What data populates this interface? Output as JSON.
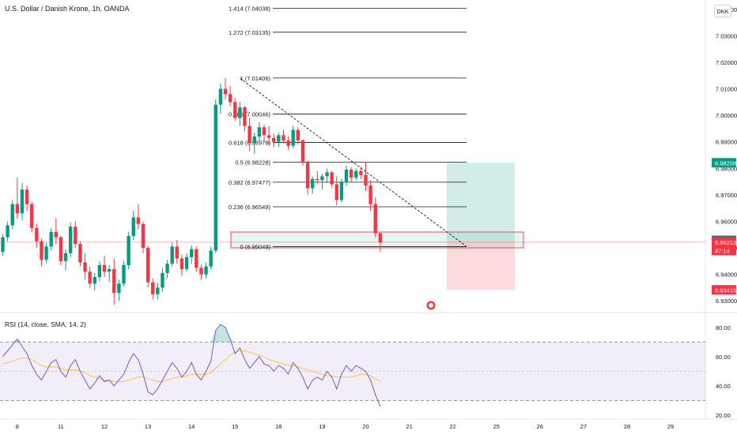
{
  "header": {
    "title": "U.S. Dollar / Danish Krone, 1h, OANDA",
    "currency_button": "DKK"
  },
  "chart_data": {
    "type": "candlestick",
    "symbol": "U.S. Dollar / Danish Krone",
    "interval": "1h",
    "source": "OANDA",
    "price_axis": {
      "range": [
        6.9265,
        7.0435
      ],
      "ticks": [
        6.93,
        6.94,
        6.95,
        6.96,
        6.97,
        6.98,
        6.99,
        7.0,
        7.01,
        7.02,
        7.03,
        7.04
      ],
      "tick_labels": [
        "6.93000",
        "6.94000",
        "6.95000",
        "6.96000",
        "6.97000",
        "6.98000",
        "6.99000",
        "7.00000",
        "7.01000",
        "7.02000",
        "7.03000",
        "7.04000"
      ],
      "badges": [
        {
          "label": "6.98208",
          "value": 6.98208,
          "color": "#089981"
        },
        {
          "label": "6.95284",
          "value": 6.95284,
          "color": "#5d606b"
        },
        {
          "label": "6.95213",
          "value": 6.95213,
          "color": "#f23645"
        },
        {
          "label": "47:14",
          "value": 6.949,
          "color": "#f23645"
        },
        {
          "label": "6.93415",
          "value": 6.93415,
          "color": "#f23645"
        }
      ],
      "last_price": 6.95213
    },
    "time_axis": {
      "labels": [
        "8",
        "11",
        "12",
        "13",
        "14",
        "15",
        "18",
        "19",
        "20",
        "21",
        "22",
        "25",
        "26",
        "27",
        "28",
        "29"
      ],
      "index": [
        3,
        12,
        21,
        30,
        39,
        48,
        57,
        66,
        75,
        84,
        93,
        102,
        111,
        120,
        129,
        138
      ]
    },
    "candles": [
      [
        6.9485,
        6.9552,
        6.947,
        6.954
      ],
      [
        6.954,
        6.96,
        6.9525,
        6.9585
      ],
      [
        6.9585,
        6.968,
        6.957,
        6.9665
      ],
      [
        6.9665,
        6.9765,
        6.961,
        6.963
      ],
      [
        6.963,
        6.9745,
        6.9605,
        6.972
      ],
      [
        6.972,
        6.9735,
        6.964,
        6.9665
      ],
      [
        6.9665,
        6.9675,
        6.956,
        6.9575
      ],
      [
        6.9575,
        6.959,
        6.95,
        6.9525
      ],
      [
        6.9525,
        6.9535,
        6.943,
        6.9455
      ],
      [
        6.9455,
        6.952,
        6.9445,
        6.9505
      ],
      [
        6.9505,
        6.9575,
        6.949,
        6.956
      ],
      [
        6.956,
        6.9612,
        6.9515,
        6.954
      ],
      [
        6.954,
        6.9545,
        6.9435,
        6.945
      ],
      [
        6.945,
        6.9495,
        6.9415,
        6.948
      ],
      [
        6.948,
        6.9595,
        6.9465,
        6.958
      ],
      [
        6.958,
        6.96,
        6.95,
        6.9515
      ],
      [
        6.9515,
        6.9525,
        6.943,
        6.9445
      ],
      [
        6.9445,
        6.9478,
        6.938,
        6.941
      ],
      [
        6.941,
        6.943,
        6.9348,
        6.9365
      ],
      [
        6.9365,
        6.9405,
        6.934,
        6.939
      ],
      [
        6.939,
        6.945,
        6.9375,
        6.9435
      ],
      [
        6.9435,
        6.947,
        6.939,
        6.941
      ],
      [
        6.941,
        6.9435,
        6.9372,
        6.942
      ],
      [
        6.942,
        6.946,
        6.9285,
        6.933
      ],
      [
        6.933,
        6.938,
        6.93,
        6.9365
      ],
      [
        6.9365,
        6.945,
        6.9355,
        6.9435
      ],
      [
        6.9435,
        6.956,
        6.942,
        6.9545
      ],
      [
        6.9545,
        6.964,
        6.953,
        6.9615
      ],
      [
        6.9615,
        6.9665,
        6.957,
        6.959
      ],
      [
        6.959,
        6.96,
        6.948,
        6.95
      ],
      [
        6.95,
        6.9508,
        6.935,
        6.937
      ],
      [
        6.937,
        6.9385,
        6.9305,
        6.9325
      ],
      [
        6.9325,
        6.9368,
        6.9305,
        6.935
      ],
      [
        6.935,
        6.9425,
        6.9335,
        6.9405
      ],
      [
        6.9405,
        6.9455,
        6.9385,
        6.944
      ],
      [
        6.944,
        6.952,
        6.943,
        6.9505
      ],
      [
        6.9505,
        6.953,
        6.944,
        6.946
      ],
      [
        6.946,
        6.9475,
        6.9395,
        6.942
      ],
      [
        6.942,
        6.948,
        6.941,
        6.9465
      ],
      [
        6.9465,
        6.951,
        6.944,
        6.9495
      ],
      [
        6.9495,
        6.9505,
        6.941,
        6.9425
      ],
      [
        6.9425,
        6.9438,
        6.938,
        6.94
      ],
      [
        6.94,
        6.9445,
        6.9385,
        6.943
      ],
      [
        6.943,
        6.9505,
        6.942,
        6.949
      ],
      [
        6.949,
        7.006,
        6.948,
        7.004
      ],
      [
        7.004,
        7.012,
        7.0005,
        7.01
      ],
      [
        7.01,
        7.014,
        7.006,
        7.008
      ],
      [
        7.008,
        7.011,
        7.0035,
        7.005
      ],
      [
        7.005,
        7.0065,
        6.998,
        6.999
      ],
      [
        6.999,
        7.005,
        6.996,
        7.003
      ],
      [
        7.003,
        7.0035,
        6.994,
        6.996
      ],
      [
        6.996,
        6.999,
        6.9865,
        6.9895
      ],
      [
        6.9895,
        6.9935,
        6.9855,
        6.992
      ],
      [
        6.992,
        6.9975,
        6.99,
        6.9955
      ],
      [
        6.9955,
        6.9965,
        6.99,
        6.9925
      ],
      [
        6.9925,
        6.996,
        6.989,
        6.9915
      ],
      [
        6.9915,
        6.993,
        6.988,
        6.99
      ],
      [
        6.99,
        6.9935,
        6.988,
        6.9925
      ],
      [
        6.9925,
        6.9945,
        6.9895,
        6.9905
      ],
      [
        6.9905,
        6.992,
        6.987,
        6.9885
      ],
      [
        6.9885,
        6.996,
        6.9875,
        6.9945
      ],
      [
        6.9945,
        6.9955,
        6.989,
        6.9905
      ],
      [
        6.9905,
        6.991,
        6.981,
        6.9825
      ],
      [
        6.9825,
        6.983,
        6.97,
        6.9725
      ],
      [
        6.9725,
        6.977,
        6.9705,
        6.976
      ],
      [
        6.976,
        6.979,
        6.974,
        6.9755
      ],
      [
        6.9755,
        6.978,
        6.972,
        6.977
      ],
      [
        6.977,
        6.98,
        6.9745,
        6.9785
      ],
      [
        6.9785,
        6.979,
        6.9725,
        6.974
      ],
      [
        6.974,
        6.977,
        6.966,
        6.968
      ],
      [
        6.968,
        6.976,
        6.9672,
        6.975
      ],
      [
        6.975,
        6.981,
        6.9735,
        6.9795
      ],
      [
        6.9795,
        6.9805,
        6.975,
        6.9765
      ],
      [
        6.9765,
        6.98,
        6.9755,
        6.979
      ],
      [
        6.979,
        6.9805,
        6.976,
        6.9775
      ],
      [
        6.9775,
        6.9825,
        6.9715,
        6.9735
      ],
      [
        6.9735,
        6.9755,
        6.964,
        6.9665
      ],
      [
        6.9665,
        6.969,
        6.954,
        6.9555
      ],
      [
        6.9555,
        6.956,
        6.9485,
        6.9521
      ]
    ],
    "fibonacci": [
      {
        "ratio": "1.414",
        "price": 7.04038,
        "label": "1.414 (7.04038)"
      },
      {
        "ratio": "1.272",
        "price": 7.03135,
        "label": "1.272 (7.03135)"
      },
      {
        "ratio": "1",
        "price": 7.01406,
        "label": "1 (7.01406)"
      },
      {
        "ratio": "0.786",
        "price": 7.00046,
        "label": "0.786 (7.00046)"
      },
      {
        "ratio": "0.618",
        "price": 6.98978,
        "label": "0.618 (6.98978)"
      },
      {
        "ratio": "0.5",
        "price": 6.98228,
        "label": "0.5 (6.98228)"
      },
      {
        "ratio": "0.382",
        "price": 6.97477,
        "label": "0.382 (6.97477)"
      },
      {
        "ratio": "0.236",
        "price": 6.96549,
        "label": "0.236 (6.96549)"
      },
      {
        "ratio": "0",
        "price": 6.95049,
        "label": "0 (6.95049)"
      }
    ],
    "trend_line": {
      "from_index": 50,
      "from_price": 7.014,
      "to_index": 87,
      "to_price": 6.9505
    },
    "position": {
      "entry": 6.95284,
      "target": 6.98208,
      "stop": 6.93415
    },
    "rsi": {
      "title": "RSI (14, close, SMA, 14, 2)",
      "range": [
        19,
        88
      ],
      "ticks": [
        20,
        40,
        60,
        80
      ],
      "tick_labels": [
        "20.00",
        "40.00",
        "60.00",
        "80.00"
      ],
      "band": [
        30,
        70
      ],
      "midline": 50,
      "values": [
        60,
        64,
        68,
        72,
        67,
        62,
        54,
        48,
        44,
        50,
        56,
        58,
        50,
        46,
        54,
        58,
        50,
        44,
        38,
        42,
        47,
        43,
        44,
        40,
        44,
        48,
        56,
        62,
        58,
        48,
        36,
        34,
        38,
        44,
        50,
        56,
        52,
        46,
        50,
        56,
        48,
        44,
        50,
        57,
        78,
        82,
        80,
        72,
        62,
        66,
        58,
        52,
        56,
        60,
        55,
        54,
        50,
        54,
        52,
        48,
        56,
        52,
        46,
        38,
        44,
        46,
        44,
        50,
        46,
        38,
        48,
        54,
        50,
        54,
        52,
        50,
        44,
        34,
        26
      ],
      "sma": [
        55,
        56,
        57,
        58,
        59,
        59,
        58,
        56,
        54,
        53,
        53,
        53,
        52,
        51,
        51,
        51,
        50,
        49,
        47,
        46,
        45,
        44,
        44,
        43,
        43,
        43,
        44,
        45,
        46,
        46,
        45,
        44,
        43,
        43,
        44,
        45,
        46,
        46,
        47,
        48,
        48,
        48,
        48,
        49,
        52,
        55,
        58,
        61,
        63,
        64,
        64,
        63,
        62,
        61,
        60,
        58,
        57,
        56,
        55,
        54,
        54,
        53,
        52,
        51,
        50,
        49,
        48,
        47,
        47,
        46,
        46,
        46,
        46,
        47,
        48,
        48,
        47,
        45,
        43
      ]
    }
  }
}
